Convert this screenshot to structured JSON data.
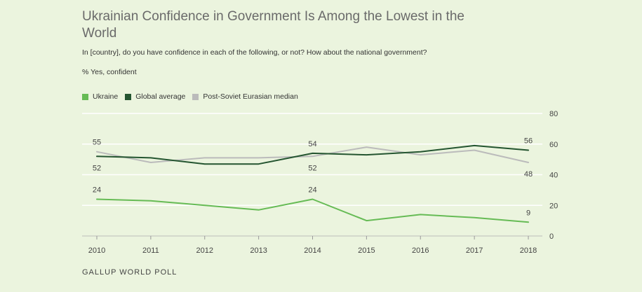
{
  "header": {
    "title": "Ukrainian Confidence in Government Is Among the Lowest in the World",
    "subtitle": "In [country], do you have confidence in each of the following, or not? How about the national government?",
    "measure": "% Yes, confident"
  },
  "legend": [
    {
      "label": "Ukraine",
      "color": "#66bb55"
    },
    {
      "label": "Global average",
      "color": "#245530"
    },
    {
      "label": "Post-Soviet Eurasian median",
      "color": "#bbbbbb"
    }
  ],
  "source": "GALLUP WORLD POLL",
  "chart_data": {
    "type": "line",
    "title": "Ukrainian Confidence in Government Is Among the Lowest in the World",
    "xlabel": "",
    "ylabel": "% Yes, confident",
    "x": [
      "2010",
      "2011",
      "2012",
      "2013",
      "2014",
      "2015",
      "2016",
      "2017",
      "2018"
    ],
    "ylim": [
      0,
      80
    ],
    "yticks": [
      0,
      20,
      40,
      60,
      80
    ],
    "series": [
      {
        "name": "Post-Soviet Eurasian median",
        "color": "#bbbbbb",
        "values": [
          55,
          48,
          51,
          51,
          52,
          58,
          53,
          56,
          48
        ]
      },
      {
        "name": "Global average",
        "color": "#245530",
        "values": [
          52,
          51,
          47,
          47,
          54,
          53,
          55,
          59,
          56
        ]
      },
      {
        "name": "Ukraine",
        "color": "#66bb55",
        "values": [
          24,
          23,
          20,
          17,
          24,
          10,
          14,
          12,
          9
        ]
      }
    ],
    "data_labels": [
      {
        "series": "Post-Soviet Eurasian median",
        "index": 0,
        "text": "55",
        "place": "above"
      },
      {
        "series": "Global average",
        "index": 0,
        "text": "52",
        "place": "below"
      },
      {
        "series": "Global average",
        "index": 4,
        "text": "54",
        "place": "above"
      },
      {
        "series": "Post-Soviet Eurasian median",
        "index": 4,
        "text": "52",
        "place": "below"
      },
      {
        "series": "Global average",
        "index": 8,
        "text": "56",
        "place": "above"
      },
      {
        "series": "Post-Soviet Eurasian median",
        "index": 8,
        "text": "48",
        "place": "below"
      },
      {
        "series": "Ukraine",
        "index": 0,
        "text": "24",
        "place": "above"
      },
      {
        "series": "Ukraine",
        "index": 4,
        "text": "24",
        "place": "above"
      },
      {
        "series": "Ukraine",
        "index": 8,
        "text": "9",
        "place": "above"
      }
    ],
    "grid": true
  }
}
